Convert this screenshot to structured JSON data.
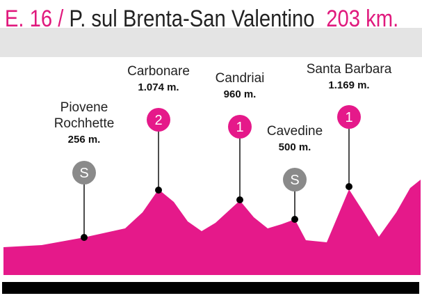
{
  "header": {
    "stage": "E. 16 /",
    "route": "P. sul Brenta-San Valentino",
    "distance": "203 km."
  },
  "climbs": [
    {
      "lines": [
        "Piovene",
        "Rochhette"
      ],
      "altitude": "256 m.",
      "badge": "S"
    },
    {
      "lines": [
        "Carbonare"
      ],
      "altitude": "1.074 m.",
      "badge": "2"
    },
    {
      "lines": [
        "Candriai"
      ],
      "altitude": "960 m.",
      "badge": "1"
    },
    {
      "lines": [
        "Cavedine"
      ],
      "altitude": "500 m.",
      "badge": "S"
    },
    {
      "lines": [
        "Santa Barbara"
      ],
      "altitude": "1.169 m.",
      "badge": "1"
    }
  ]
}
